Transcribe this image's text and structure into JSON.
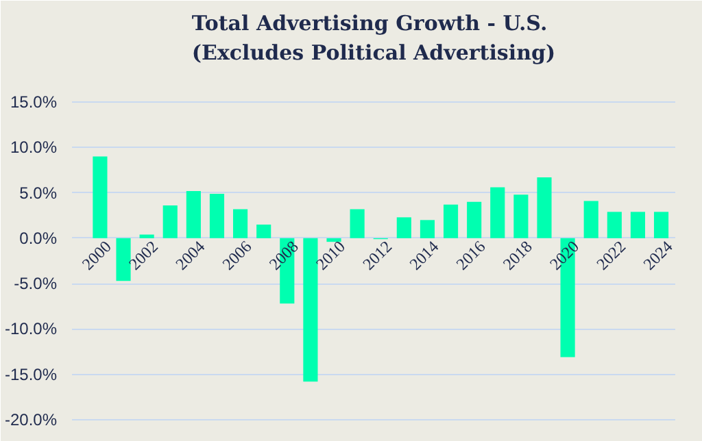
{
  "chart_data": {
    "type": "bar",
    "title": "Total Advertising Growth - U.S.\n(Excludes Political Advertising)",
    "x": [
      2000,
      2001,
      2002,
      2003,
      2004,
      2005,
      2006,
      2007,
      2008,
      2009,
      2010,
      2011,
      2012,
      2013,
      2014,
      2015,
      2016,
      2017,
      2018,
      2019,
      2020,
      2021,
      2022,
      2023,
      2024
    ],
    "values": [
      9.0,
      -4.7,
      0.4,
      3.6,
      5.2,
      4.9,
      3.2,
      1.5,
      -7.2,
      -15.8,
      -0.4,
      3.2,
      -0.1,
      2.3,
      2.0,
      3.7,
      4.0,
      5.6,
      4.8,
      6.7,
      -13.1,
      4.1,
      2.9,
      2.9,
      2.9
    ],
    "color": "#00ffb0",
    "xlim": [
      1998.8,
      2024.6
    ],
    "xticks": [
      2000,
      2002,
      2004,
      2006,
      2008,
      2010,
      2012,
      2014,
      2016,
      2018,
      2020,
      2022,
      2024
    ],
    "ylim": [
      -20.6,
      15.6
    ],
    "yticks": [
      {
        "value": 15,
        "label": "15.0%"
      },
      {
        "value": 10,
        "label": "10.0%"
      },
      {
        "value": 5,
        "label": "5.0%"
      },
      {
        "value": 0,
        "label": "0.0%"
      },
      {
        "value": -5,
        "label": "-5.0%"
      },
      {
        "value": -10,
        "label": "-10.0%"
      },
      {
        "value": -15,
        "label": "-15.0%"
      },
      {
        "value": -20,
        "label": "-20.0%"
      }
    ],
    "grid": "y"
  }
}
